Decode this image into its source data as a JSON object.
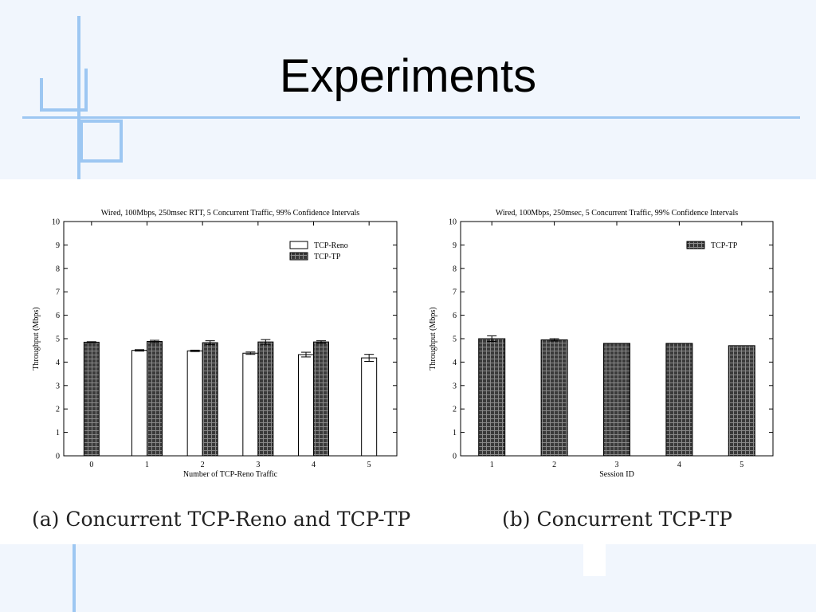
{
  "slide": {
    "title": "Experiments",
    "caption_a": "(a) Concurrent TCP-Reno and TCP-TP",
    "caption_b": "(b) Concurrent TCP-TP"
  },
  "colors": {
    "background": "#f1f6fd",
    "decoration": "#9dc7f2",
    "tcp_tp_fill": "#3a3a3a",
    "tcp_tp_grid": "#8a8a8a",
    "tcp_reno_fill": "#ffffff"
  },
  "chart_data": [
    {
      "type": "bar",
      "title": "Wired, 100Mbps, 250msec RTT, 5 Concurrent Traffic, 99% Confidence Intervals",
      "xlabel": "Number of TCP-Reno Traffic",
      "ylabel": "Throughput (Mbps)",
      "ylim": [
        0,
        10
      ],
      "yticks": [
        0,
        1,
        2,
        3,
        4,
        5,
        6,
        7,
        8,
        9,
        10
      ],
      "categories": [
        "0",
        "1",
        "2",
        "3",
        "4",
        "5"
      ],
      "legend_position": "top-right",
      "series": [
        {
          "name": "TCP-Reno",
          "style": "white",
          "values": [
            null,
            4.5,
            4.48,
            4.38,
            4.32,
            4.18
          ],
          "errors": [
            null,
            0.03,
            0.03,
            0.05,
            0.1,
            0.15
          ]
        },
        {
          "name": "TCP-TP",
          "style": "hatched",
          "values": [
            4.85,
            4.88,
            4.83,
            4.86,
            4.86,
            null
          ],
          "errors": [
            0.02,
            0.05,
            0.08,
            0.1,
            0.05,
            null
          ]
        }
      ]
    },
    {
      "type": "bar",
      "title": "Wired, 100Mbps, 250msec, 5 Concurrent Traffic, 99% Confidence Intervals",
      "xlabel": "Session ID",
      "ylabel": "Throughput (Mbps)",
      "ylim": [
        0,
        10
      ],
      "yticks": [
        0,
        1,
        2,
        3,
        4,
        5,
        6,
        7,
        8,
        9,
        10
      ],
      "categories": [
        "1",
        "2",
        "3",
        "4",
        "5"
      ],
      "legend_position": "top-right",
      "series": [
        {
          "name": "TCP-TP",
          "style": "hatched",
          "values": [
            5.0,
            4.95,
            4.8,
            4.8,
            4.7
          ],
          "errors": [
            0.12,
            0.05,
            0.0,
            0.0,
            0.0
          ]
        }
      ]
    }
  ]
}
